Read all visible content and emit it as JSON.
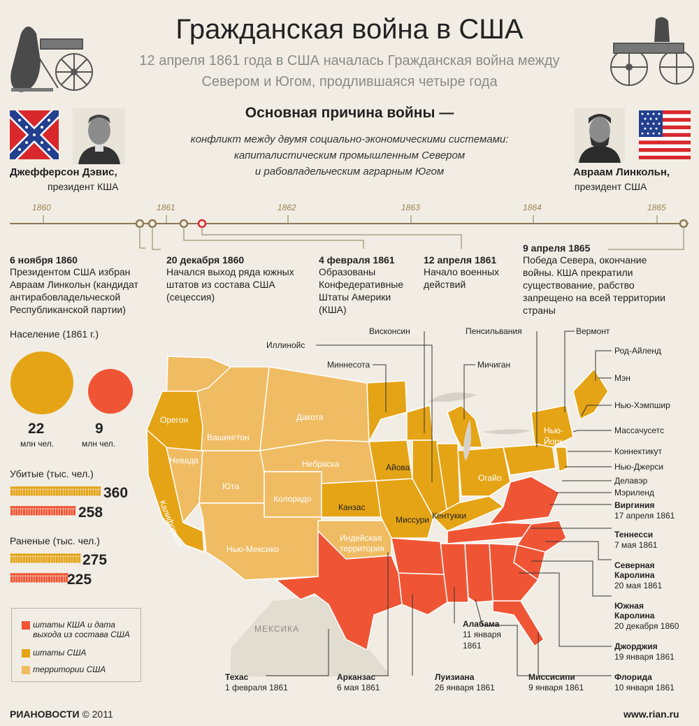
{
  "header": {
    "title": "Гражданская война в США",
    "subtitle_line1": "12 апреля 1861 года в США началась Гражданская война между",
    "subtitle_line2": "Севером и Югом, продлившаяся четыре года"
  },
  "cause": {
    "heading": "Основная причина войны —",
    "line1": "конфликт между двумя социально-экономическими системами:",
    "line2": "капиталистическим промышленным Севером",
    "line3": "и рабовладельческим аграрным Югом"
  },
  "leaders": {
    "south": {
      "name": "Джефферсон Дэвис,",
      "role": "президент КША"
    },
    "north": {
      "name": "Авраам Линкольн,",
      "role": "президент США"
    }
  },
  "timeline": {
    "years": [
      "1860",
      "1861",
      "1862",
      "1863",
      "1864",
      "1865"
    ],
    "events": [
      {
        "date": "6 ноября 1860",
        "text": [
          "Президентом США избран",
          "Авраам Линкольн (кандидат",
          "антирабовладельческой",
          "Республиканской партии)"
        ]
      },
      {
        "date": "20 декабря 1860",
        "text": [
          "Начался выход ряда южных",
          "штатов из состава США",
          "(сецессия)"
        ]
      },
      {
        "date": "4 февраля 1861",
        "text": [
          "Образованы",
          "Конфедеративные",
          "Штаты Америки",
          "(КША)"
        ]
      },
      {
        "date": "12 апреля 1861",
        "text": [
          "Начало военных",
          "действий"
        ]
      },
      {
        "date": "9 апреля 1865",
        "text": [
          "Победа Севера, окончание",
          "войны. КША прекратили",
          "существование, рабство",
          "запрещено на всей территории",
          "страны"
        ]
      }
    ]
  },
  "stats": {
    "population_heading": "Население (1861 г.)",
    "north_population": "22",
    "south_population": "9",
    "unit": "млн чел.",
    "killed_heading": "Убитые (тыс. чел.)",
    "killed_north": "360",
    "killed_south": "258",
    "wounded_heading": "Раненые (тыс. чел.)",
    "wounded_north": "275",
    "wounded_south": "225"
  },
  "legend": {
    "csa": [
      "штаты КША и дата",
      "выхода из состава США"
    ],
    "usa": "штаты США",
    "territories": "территории США"
  },
  "colors": {
    "csa": "#ef5535",
    "usa": "#e5a416",
    "territory": "#f0bc63",
    "timeline": "#8a7a52"
  },
  "map": {
    "inner_labels": {
      "oregon": "Орегон",
      "washington": "Вашингтон",
      "dakota": "Дакота",
      "nevada": "Невада",
      "utah": "Юта",
      "nebraska": "Небраска",
      "colorado": "Колорадо",
      "kansas": "Канзас",
      "california": "Калифорния",
      "new_mexico": "Нью-Мексико",
      "indian_territory": [
        "Индейская",
        "территория"
      ],
      "iowa": "Айова",
      "missouri": "Миссури",
      "kentucky": "Кентукки",
      "ohio": "Огайо",
      "new_york": [
        "Нью-",
        "Йорк"
      ],
      "mexico": "МЕКСИКА"
    },
    "callouts": {
      "wisconsin": "Висконсин",
      "illinois": "Иллинойс",
      "minnesota": "Миннесота",
      "michigan": "Мичиган",
      "pennsylvania": "Пенсильвания",
      "vermont": "Вермонт",
      "rhode_island": "Род-Айленд",
      "maine": "Мэн",
      "new_hampshire": "Нью-Хэмпшир",
      "massachusetts": "Массачусетс",
      "connecticut": "Коннектикут",
      "new_jersey": "Нью-Джерси",
      "delaware": "Делавэр",
      "maryland": "Мэриленд"
    },
    "confederate": {
      "virginia": {
        "name": "Виргиния",
        "date": "17 апреля 1861"
      },
      "tennessee": {
        "name": "Теннесси",
        "date": "7 мая 1861"
      },
      "north_carolina": {
        "name": [
          "Северная",
          "Каролина"
        ],
        "date": "20 мая 1861"
      },
      "south_carolina": {
        "name": [
          "Южная",
          "Каролина"
        ],
        "date": "20 декабря 1860"
      },
      "georgia": {
        "name": "Джорджия",
        "date": "19 января 1861"
      },
      "florida": {
        "name": "Флорида",
        "date": "10 января 1861"
      },
      "mississippi": {
        "name": "Миссисипи",
        "date": "9 января 1861"
      },
      "louisiana": {
        "name": "Луизиана",
        "date": "26 января 1861"
      },
      "arkansas": {
        "name": "Арканзас",
        "date": "6 мая 1861"
      },
      "texas": {
        "name": "Техас",
        "date": "1 февраля 1861"
      },
      "alabama": {
        "name": "Алабама",
        "date": [
          "11 января",
          "1861"
        ]
      }
    }
  },
  "footer": {
    "brand": "РИАНОВОСТИ",
    "copyright": "© 2011",
    "url": "www.rian.ru"
  }
}
